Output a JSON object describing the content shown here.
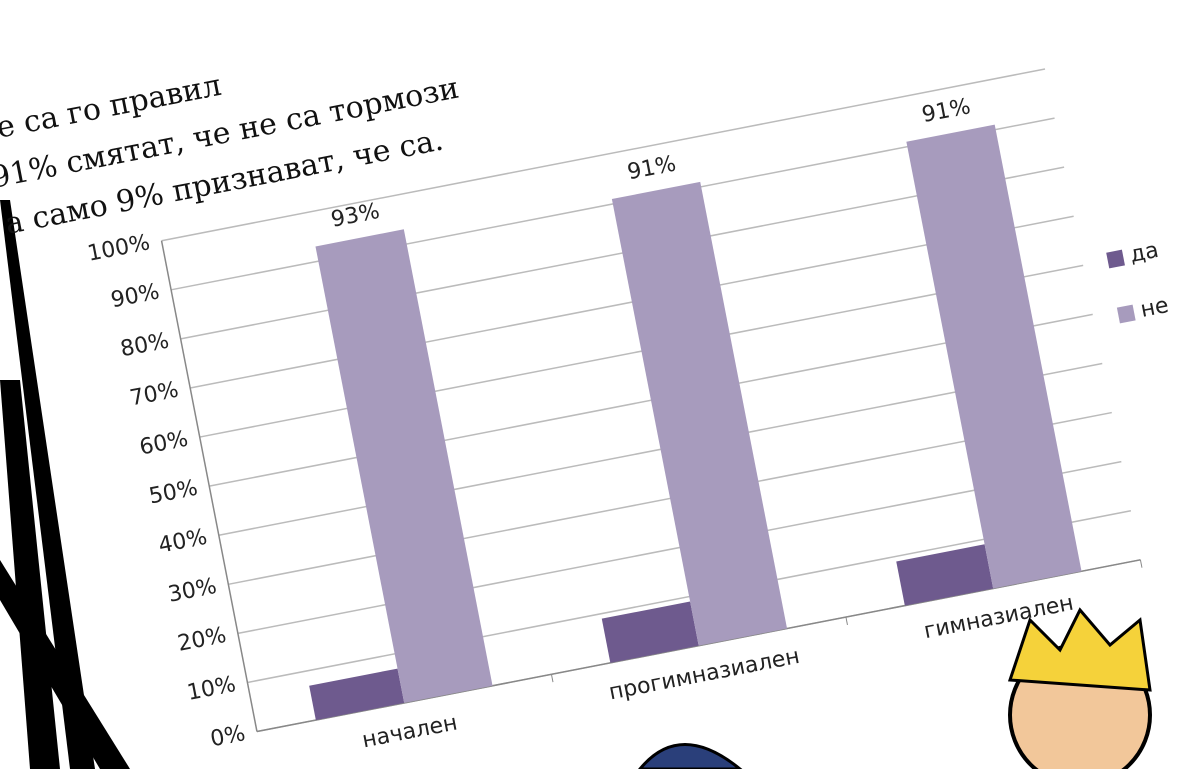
{
  "chart_data": {
    "type": "bar",
    "text_lines": [
      "не са го правил",
      "91% смятат, че не са тормози",
      "а само 9% признават, че са."
    ],
    "categories": [
      "начален",
      "прогимназиален",
      "гимназиален"
    ],
    "series": [
      {
        "name": "да",
        "color": "#6e5a8e",
        "values": [
          7,
          9,
          9
        ]
      },
      {
        "name": "не",
        "color": "#a79bbd",
        "values": [
          93,
          91,
          91
        ],
        "value_labels": [
          "93%",
          "91%",
          "91%"
        ]
      }
    ],
    "ylim": [
      0,
      100
    ],
    "yticks": [
      {
        "value": 0,
        "label": "0%"
      },
      {
        "value": 10,
        "label": "10%"
      },
      {
        "value": 20,
        "label": "20%"
      },
      {
        "value": 30,
        "label": "30%"
      },
      {
        "value": 40,
        "label": "40%"
      },
      {
        "value": 50,
        "label": "50%"
      },
      {
        "value": 60,
        "label": "60%"
      },
      {
        "value": 70,
        "label": "70%"
      },
      {
        "value": 80,
        "label": "80%"
      },
      {
        "value": 90,
        "label": "90%"
      },
      {
        "value": 100,
        "label": "100%"
      }
    ],
    "grid": true,
    "legend": "right"
  }
}
